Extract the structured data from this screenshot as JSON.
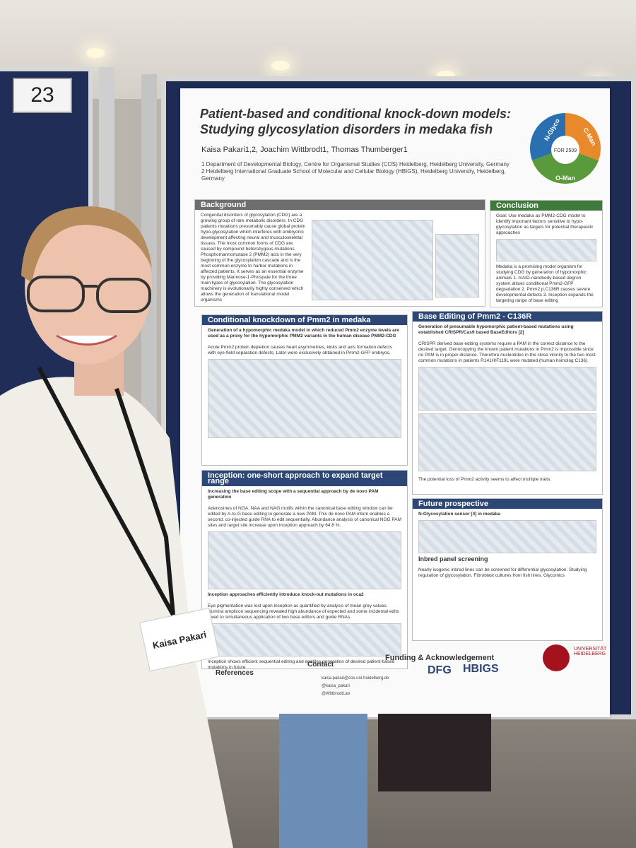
{
  "board_number": "23",
  "poster": {
    "title": [
      "Patient-based and conditional knock-down models:",
      "Studying glycosylation disorders in medaka fish"
    ],
    "authors": "Kaisa Pakari1,2, Joachim Wittbrodt1, Thomas Thumberger1",
    "affiliations": [
      "1 Department of Developmental Biology, Centre for Organismal Studies (COS) Heidelberg, Heidelberg University, Germany",
      "2 Heidelberg International Graduate School of Molecular and Cellular Biology (HBIGS), Heidelberg University, Heidelberg, Germany"
    ],
    "logo": [
      "N-Glyco",
      "C-Man",
      "O-Man",
      "FOR 2509"
    ],
    "background": {
      "heading": "Background",
      "text": "Congenital disorders of glycosylation (CDG) are a growing group of rare metabolic disorders. In CDG patients mutations presumably cause global protein hypo-glycosylation which interferes with embryonic development affecting neural and musculoskeletal tissues. The most common forms of CDG are caused by compound heterozygous mutations. Phosphomannomutase 2 (PMM2) acts in the very beginning of the glycosylation cascade and is the most common enzyme to harbor mutations in affected patients. It serves as an essential enzyme by providing Mannose-1-Phospate for the three main types of glycosylation. The glycosylation machinery is evolutionarily highly conserved which allows the generation of translational model organisms"
    },
    "conclusion": {
      "heading": "Conclusion",
      "text": "Goal: Use medaka as PMM2-CDG model to identify important factors sensitive to hypo-glycosylation as targets for potential therapeutic approaches",
      "points": "Medaka is a promising model organism for studying CDG by generation of hypomorphic animals 1. mAID-nanobody-based degron system allows conditional Pmm2-GFP degradation 2. Pmm2 p.C136R causes severe developmental defects 3. Inception expands the targeting range of base editing"
    },
    "knockdown": {
      "heading": "Conditional knockdown of Pmm2 in medaka",
      "subheading": "Generation of a hypomorphic medaka model in which reduced Pmm2 enzyme levels are used as a proxy for the hypomorphic PMM2 variants in the human disease PMM2-CDG",
      "text": "Acute Pmm2 protein depletion causes heart asymmetries, kinks and axis formation defects with eye-field separation defects. Later were exclusively obtained in Pmm2-GFP embryos."
    },
    "base_editing": {
      "heading": "Base Editing of Pmm2 - C136R",
      "subheading": "Generation of presumable hypomorphic patient-based mutations using established CRISPR/Cas9 based BaseEditors [2]",
      "text": "CRISPR derived base editing systems require a PAM in the correct distance to the desired target. Genocopying the known patient mutations in Pmm2 is impossible since no PAM is in proper distance. Therefore nucleotides in the close vicinity to the two most common mutations in patients R141H/F119L were mutated (human homolog C136).",
      "caption": "The potential loss of Pmm2 activity seems to affect multiple traits."
    },
    "inception": {
      "heading": "Inception: one-short approach to expand target range",
      "subheading": "Increasing the base editing scope with a sequential approach by de novo PAM generation",
      "text": "Adenosines of NGA, NAA and NAG motifs within the canonical base editing window can be edited by A-to-G base editing to generate a new PAM. This de novo PAM inturn enables a second, co-injected guide RNA to edit sequentially. Abundance analysis of canonical NGG PAM sites and target site increase upon inception approach by 64.8 %.",
      "subheading2": "Inception approaches efficiently introduce knock-out mutations in oca2",
      "text2": "Eye pigmentation was lost upon inception as quantified by analysis of mean grey values. Illumina amplicon sequencing revealed high abundance of expected and some incidental edits owed to simultaneous application of two base editors and guide RNAs.",
      "caption": "Inception shows efficient sequential editing and enables generation of desired patient-based mutations in future"
    },
    "future": {
      "heading": "Future prospective",
      "subheading": "N-Glycosylation sensor [4] in medaka",
      "panel": "Inbred panel screening",
      "points": "Nearly isogenic inbred lines can be screened for differential glycosylation. Studying regulation of glycosylation. Fibroblast cultures from fish lines. Glycomics"
    },
    "funding": {
      "heading": "Funding & Acknowledgement",
      "logos": [
        "DFG",
        "HBIGS",
        "UNIVERSITÄT HEIDELBERG"
      ]
    },
    "references_heading": "References",
    "contact": {
      "heading": "Contact",
      "items": [
        "kaisa.pakari@cos.uni-heidelberg.de",
        "@kaisa_pakari",
        "@WittbrodtLab"
      ]
    }
  },
  "badge": {
    "name": "Kaisa Pakari"
  }
}
